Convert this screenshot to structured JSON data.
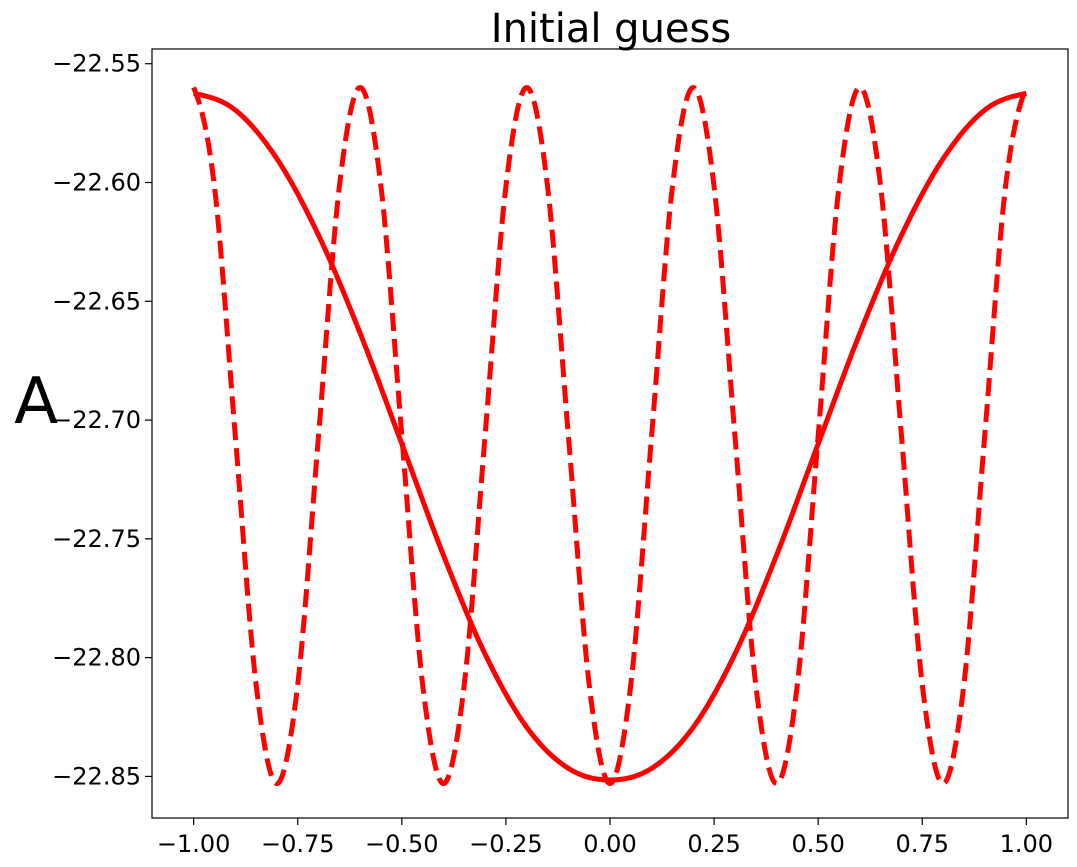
{
  "chart_data": {
    "type": "line",
    "title": "Initial guess",
    "xlabel": "",
    "ylabel": "A",
    "xlim": [
      -1.1,
      1.1
    ],
    "ylim": [
      -22.8675,
      -22.5438
    ],
    "grid": false,
    "legend": "none",
    "x_ticks": [
      -1.0,
      -0.75,
      -0.5,
      -0.25,
      0.0,
      0.25,
      0.5,
      0.75,
      1.0
    ],
    "x_tick_labels": [
      "−1.00",
      "−0.75",
      "−0.50",
      "−0.25",
      "0.00",
      "0.25",
      "0.50",
      "0.75",
      "1.00"
    ],
    "y_ticks": [
      -22.85,
      -22.8,
      -22.75,
      -22.7,
      -22.65,
      -22.6,
      -22.55
    ],
    "y_tick_labels": [
      "−22.85",
      "−22.80",
      "−22.75",
      "−22.70",
      "−22.65",
      "−22.60",
      "−22.55"
    ],
    "series": [
      {
        "style": "solid",
        "color": "#ff0000",
        "x": [
          -1.0,
          -0.9,
          -0.8,
          -0.7,
          -0.6,
          -0.5,
          -0.4,
          -0.3,
          -0.2,
          -0.1,
          0.0,
          0.1,
          0.2,
          0.3,
          0.4,
          0.5,
          0.6,
          0.7,
          0.8,
          0.9,
          1.0
        ],
        "y": [
          -22.5625,
          -22.5695,
          -22.59,
          -22.6222,
          -22.6635,
          -22.71,
          -22.7569,
          -22.7985,
          -22.8293,
          -22.8466,
          -22.8515,
          -22.8466,
          -22.8293,
          -22.7985,
          -22.7569,
          -22.71,
          -22.6635,
          -22.6222,
          -22.59,
          -22.5695,
          -22.5625
        ]
      },
      {
        "style": "dashed",
        "color": "#ff0000",
        "x": [
          -1.0,
          -0.95,
          -0.9,
          -0.85,
          -0.8,
          -0.75,
          -0.7,
          -0.65,
          -0.6,
          -0.55,
          -0.5,
          -0.45,
          -0.4,
          -0.35,
          -0.3,
          -0.25,
          -0.2,
          -0.15,
          -0.1,
          -0.05,
          0.0,
          0.05,
          0.1,
          0.15,
          0.2,
          0.25,
          0.3,
          0.35,
          0.4,
          0.45,
          0.5,
          0.55,
          0.6,
          0.65,
          0.7,
          0.75,
          0.8,
          0.85,
          0.9,
          0.95,
          1.0
        ],
        "y": [
          -22.56,
          -22.6017,
          -22.7065,
          -22.8113,
          -22.853,
          -22.8113,
          -22.7065,
          -22.6017,
          -22.56,
          -22.6017,
          -22.7065,
          -22.8113,
          -22.853,
          -22.8113,
          -22.7065,
          -22.6017,
          -22.56,
          -22.6017,
          -22.7065,
          -22.8113,
          -22.853,
          -22.8113,
          -22.7065,
          -22.6017,
          -22.56,
          -22.6017,
          -22.7065,
          -22.8113,
          -22.853,
          -22.8113,
          -22.7065,
          -22.6017,
          -22.56,
          -22.6017,
          -22.7065,
          -22.8113,
          -22.853,
          -22.8113,
          -22.7065,
          -22.6017,
          -22.56
        ]
      }
    ]
  }
}
